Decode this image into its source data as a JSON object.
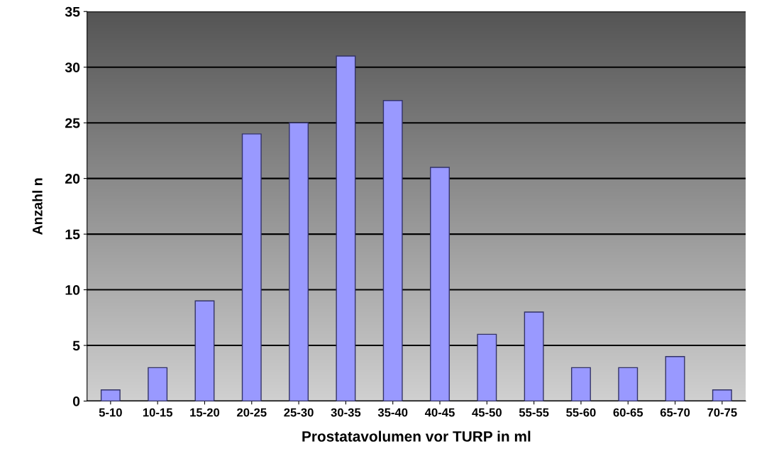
{
  "chart_data": {
    "type": "bar",
    "xlabel": "Prostatavolumen vor TURP in ml",
    "ylabel": "Anzahl n",
    "categories": [
      "5-10",
      "10-15",
      "15-20",
      "20-25",
      "25-30",
      "30-35",
      "35-40",
      "40-45",
      "45-50",
      "55-55",
      "55-60",
      "60-65",
      "65-70",
      "70-75"
    ],
    "values": [
      1,
      3,
      9,
      24,
      25,
      31,
      27,
      21,
      6,
      8,
      3,
      3,
      4,
      1
    ],
    "color": "#9999ff",
    "ylim": [
      0,
      35
    ],
    "yticks": [
      0,
      5,
      10,
      15,
      20,
      25,
      30,
      35
    ],
    "grid": "y"
  }
}
